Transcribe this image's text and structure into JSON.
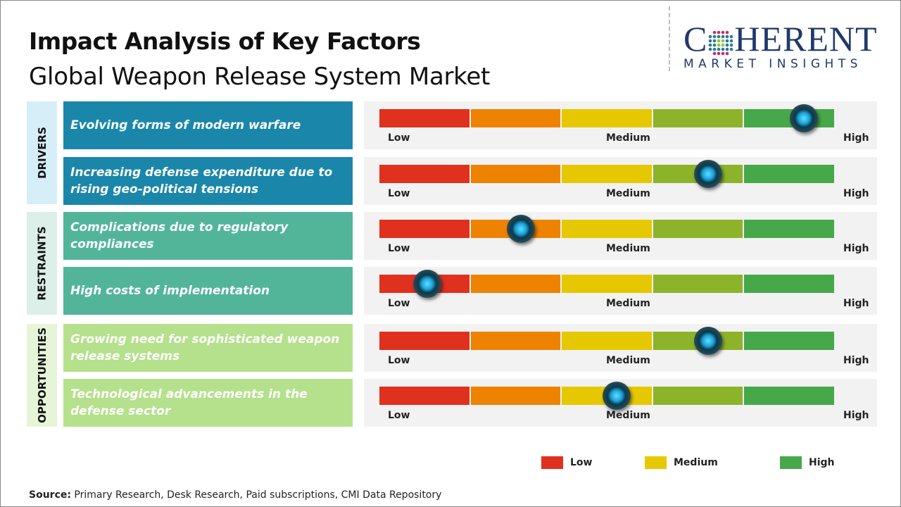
{
  "title": "Impact Analysis of Key Factors",
  "subtitle": "Global Weapon Release System Market",
  "logo": {
    "name": "COHERENT",
    "tagline": "MARKET INSIGHTS"
  },
  "scale_labels": {
    "low": "Low",
    "medium": "Medium",
    "high": "High"
  },
  "scale_colors": [
    "#e0301e",
    "#ee8300",
    "#e6c800",
    "#8db32a",
    "#47a84a"
  ],
  "categories": [
    {
      "label": "DRIVERS",
      "bg": "#d6eef8",
      "factor_color": "#1a87aa",
      "factors": [
        {
          "text": "Evolving forms of modern warfare",
          "impact": 0.93
        },
        {
          "text": "Increasing defense expenditure due to rising geo-political tensions",
          "impact": 0.72
        }
      ]
    },
    {
      "label": "RESTRAINTS",
      "bg": "#dcefe8",
      "factor_color": "#52b59a",
      "factors": [
        {
          "text": "Complications due to regulatory compliances",
          "impact": 0.31
        },
        {
          "text": "High costs of implementation",
          "impact": 0.105
        }
      ]
    },
    {
      "label": "OPPORTUNITIES",
      "bg": "#e6f5d8",
      "factor_color": "#b5e08c",
      "factors": [
        {
          "text": "Growing need for sophisticated weapon release systems",
          "impact": 0.72
        },
        {
          "text": "Technological advancements in the defense sector",
          "impact": 0.52
        }
      ]
    }
  ],
  "legend": [
    {
      "label": "Low",
      "color": "#e0301e"
    },
    {
      "label": "Medium",
      "color": "#e6c800"
    },
    {
      "label": "High",
      "color": "#47a84a"
    }
  ],
  "source": {
    "label": "Source:",
    "text": " Primary Research, Desk Research, Paid subscriptions, CMI Data Repository"
  }
}
